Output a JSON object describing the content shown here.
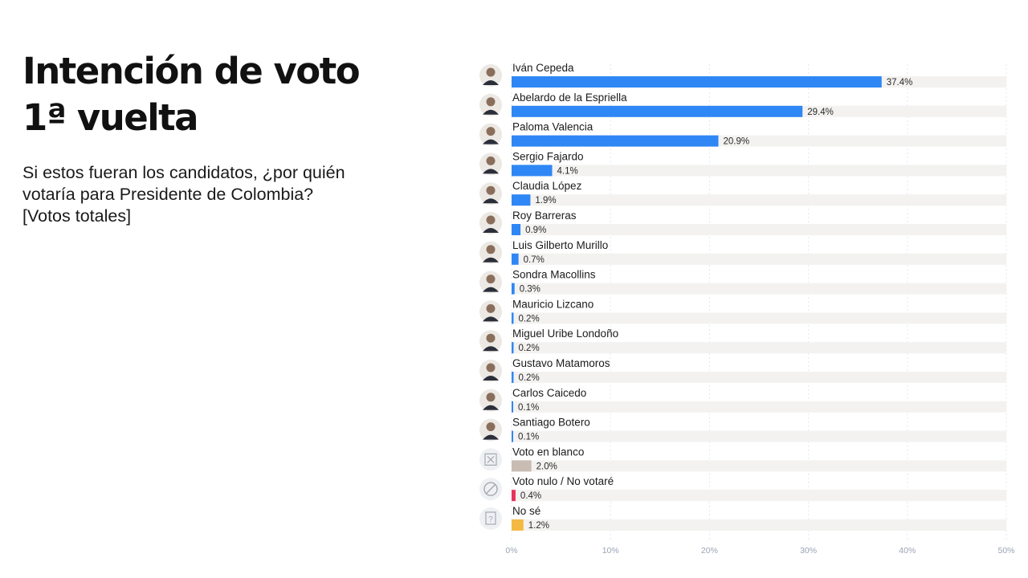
{
  "header": {
    "title_lines": [
      "Intención de voto",
      "1ª vuelta"
    ],
    "subtitle_lines": [
      "Si estos fueran los candidatos, ¿por quién",
      "votaría para Presidente de Colombia?",
      "[Votos totales]"
    ]
  },
  "chart_data": {
    "type": "bar",
    "orientation": "horizontal",
    "categories": [
      "Iván Cepeda",
      "Abelardo de la Espriella",
      "Paloma Valencia",
      "Sergio Fajardo",
      "Claudia López",
      "Roy Barreras",
      "Luis Gilberto Murillo",
      "Sondra Macollins",
      "Mauricio Lizcano",
      "Miguel Uribe Londoño",
      "Gustavo Matamoros",
      "Carlos Caicedo",
      "Santiago Botero",
      "Voto en blanco",
      "Voto nulo / No votaré",
      "No sé"
    ],
    "values": [
      37.4,
      29.4,
      20.9,
      4.1,
      1.9,
      0.9,
      0.7,
      0.3,
      0.2,
      0.2,
      0.2,
      0.1,
      0.1,
      2.0,
      0.4,
      1.2
    ],
    "value_labels": [
      "37.4%",
      "29.4%",
      "20.9%",
      "4.1%",
      "1.9%",
      "0.9%",
      "0.7%",
      "0.3%",
      "0.2%",
      "0.2%",
      "0.2%",
      "0.1%",
      "0.1%",
      "2.0%",
      "0.4%",
      "1.2%"
    ],
    "bar_colors": [
      "#2f86f5",
      "#2f86f5",
      "#2f86f5",
      "#2f86f5",
      "#2f86f5",
      "#2f86f5",
      "#2f86f5",
      "#2f86f5",
      "#2f86f5",
      "#2f86f5",
      "#2f86f5",
      "#2f86f5",
      "#2f86f5",
      "#c8bcb3",
      "#e8315b",
      "#f4b942"
    ],
    "icons": [
      "person-photo",
      "person-photo",
      "person-photo",
      "person-photo",
      "person-photo",
      "person-photo",
      "person-photo",
      "person-photo",
      "person-photo",
      "person-photo",
      "person-photo",
      "person-photo",
      "person-photo",
      "blank-ballot-icon",
      "prohibited-icon",
      "question-icon"
    ],
    "xlim": [
      0,
      50
    ],
    "x_ticks": [
      0,
      10,
      20,
      30,
      40,
      50
    ],
    "x_tick_labels": [
      "0%",
      "10%",
      "20%",
      "30%",
      "40%",
      "50%"
    ],
    "track_color": "#f3f2f0",
    "grid": "vertical dashed",
    "legend": "none"
  }
}
